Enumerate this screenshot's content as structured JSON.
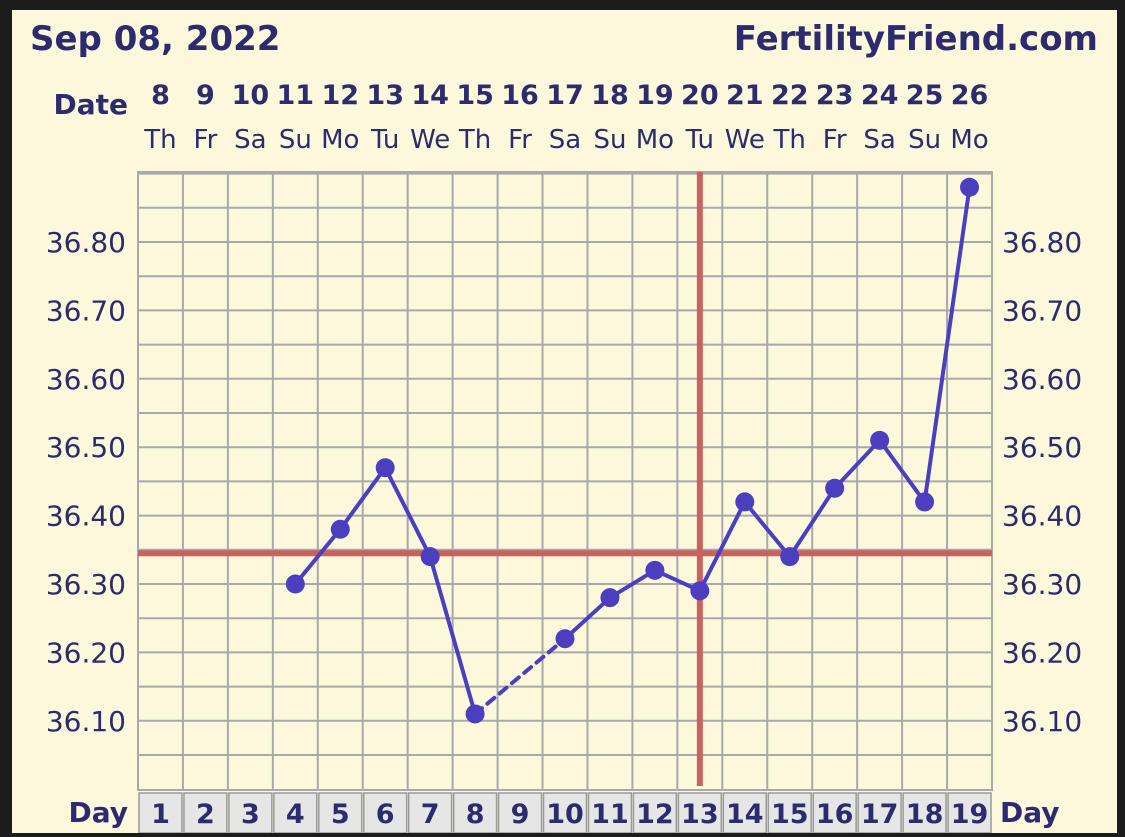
{
  "header": {
    "date_label": "Sep 08, 2022",
    "site": "FertilityFriend.com",
    "row_date_label": "Date",
    "row_day_label": "Day"
  },
  "colors": {
    "background": "#fbf8dc",
    "frame": "#1c1c1c",
    "grid": "#a9a9a9",
    "series": "#4b3fbf",
    "coverline": "#c9625e",
    "header_text": "#2d2a6e",
    "axis_text": "#2d2a6e",
    "day_box": "#e6e6e6"
  },
  "chart_data": {
    "type": "line",
    "ylim": [
      36.0,
      36.9
    ],
    "yticks": [
      "36.10",
      "36.20",
      "36.30",
      "36.40",
      "36.50",
      "36.60",
      "36.70",
      "36.80"
    ],
    "dates": [
      "8",
      "9",
      "10",
      "11",
      "12",
      "13",
      "14",
      "15",
      "16",
      "17",
      "18",
      "19",
      "20",
      "21",
      "22",
      "23",
      "24",
      "25",
      "26"
    ],
    "weekdays": [
      "Th",
      "Fr",
      "Sa",
      "Su",
      "Mo",
      "Tu",
      "We",
      "Th",
      "Fr",
      "Sa",
      "Su",
      "Mo",
      "Tu",
      "We",
      "Th",
      "Fr",
      "Sa",
      "Su",
      "Mo"
    ],
    "cycle_days": [
      "1",
      "2",
      "3",
      "4",
      "5",
      "6",
      "7",
      "8",
      "9",
      "10",
      "11",
      "12",
      "13",
      "14",
      "15",
      "16",
      "17",
      "18",
      "19"
    ],
    "series": [
      {
        "values": [
          null,
          null,
          null,
          36.3,
          36.38,
          36.47,
          36.34,
          36.11,
          null,
          36.22,
          36.28,
          36.32,
          36.29,
          36.42,
          36.34,
          36.44,
          36.51,
          36.42,
          36.88
        ]
      }
    ],
    "coverline": 36.345,
    "ovulation_day": "13"
  }
}
